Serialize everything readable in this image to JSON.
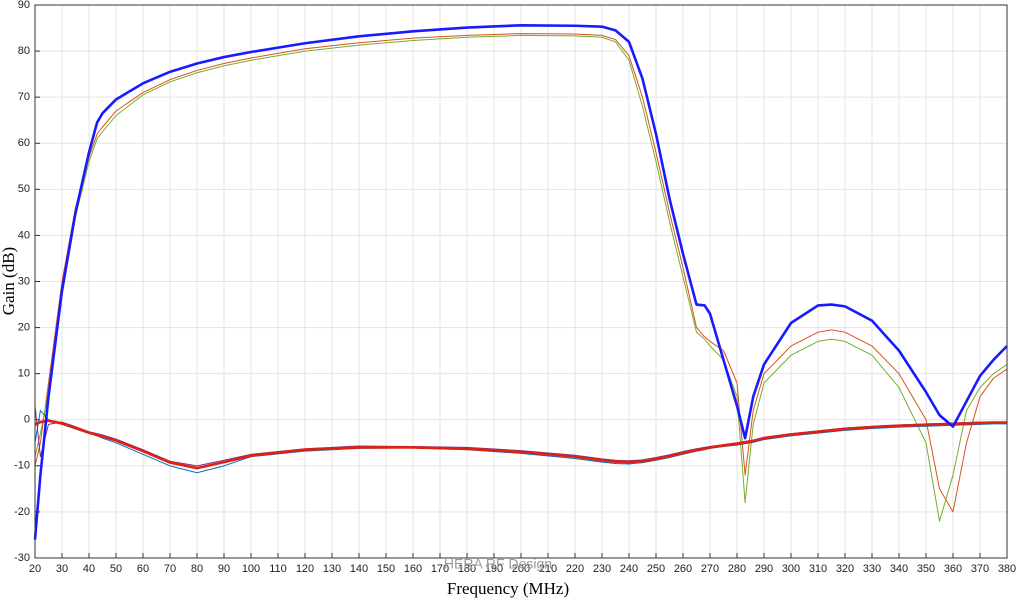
{
  "chart_data": {
    "type": "line",
    "x_label": "Frequency (MHz)",
    "y_label": "Gain (dB)",
    "annotation": "HERA RF Design",
    "x": [
      20,
      22,
      25,
      30,
      35,
      40,
      43,
      45,
      50,
      60,
      70,
      80,
      90,
      100,
      120,
      140,
      160,
      180,
      200,
      220,
      230,
      235,
      240,
      245,
      250,
      255,
      260,
      265,
      268,
      270,
      275,
      280,
      283,
      286,
      290,
      300,
      310,
      315,
      320,
      330,
      340,
      350,
      355,
      360,
      365,
      370,
      375,
      380
    ],
    "series": [
      {
        "color": "#d95319",
        "values": [
          -10,
          -5,
          8,
          30,
          46,
          57,
          62,
          63.5,
          67,
          71,
          73.8,
          75.8,
          77.3,
          78.5,
          80.5,
          81.8,
          82.8,
          83.4,
          83.8,
          83.7,
          83.4,
          82.5,
          79,
          70,
          58,
          45,
          33,
          20,
          18,
          17,
          15,
          8,
          -12,
          2,
          10,
          16,
          19,
          19.5,
          19,
          16,
          10,
          0,
          -15,
          -20,
          -5,
          5,
          9,
          11
        ]
      },
      {
        "color": "#77ac30",
        "values": [
          -8,
          -3,
          6,
          27,
          44,
          56,
          61,
          62.5,
          66,
          70.5,
          73.3,
          75.3,
          76.8,
          78,
          80,
          81.3,
          82.3,
          83,
          83.4,
          83.3,
          83,
          82,
          78,
          68,
          56,
          43,
          31,
          19,
          17.5,
          16,
          13,
          5,
          -18,
          -1,
          8,
          14,
          17,
          17.5,
          17,
          14,
          7,
          -5,
          -22,
          -12,
          2,
          7,
          10,
          12
        ]
      },
      {
        "color": "#0072bd",
        "values": [
          -5,
          2,
          0,
          -1,
          -2,
          -3,
          -3.5,
          -4,
          -5,
          -7.5,
          -10,
          -11.5,
          -10,
          -8,
          -6.8,
          -6.2,
          -6.1,
          -6.5,
          -7.3,
          -8.4,
          -9.2,
          -9.5,
          -9.6,
          -9.3,
          -8.8,
          -8.2,
          -7.5,
          -6.8,
          -6.5,
          -6.2,
          -5.8,
          -5.5,
          -5.2,
          -4.9,
          -4.3,
          -3.5,
          -2.9,
          -2.6,
          -2.3,
          -1.9,
          -1.6,
          -1.4,
          -1.3,
          -1.2,
          -1.1,
          -1,
          -0.9,
          -0.9
        ]
      },
      {
        "color": "#7e2f8e",
        "values": [
          3,
          -8,
          -1,
          -0.5,
          -1.5,
          -2.6,
          -3,
          -3.3,
          -4.2,
          -6.5,
          -9,
          -10,
          -8.8,
          -7.5,
          -6.3,
          -5.7,
          -5.8,
          -6,
          -6.7,
          -7.7,
          -8.5,
          -8.8,
          -8.9,
          -8.7,
          -8.2,
          -7.6,
          -6.9,
          -6.3,
          -6,
          -5.8,
          -5.4,
          -5,
          -4.7,
          -4.4,
          -3.8,
          -3,
          -2.4,
          -2.1,
          -1.8,
          -1.4,
          -1.1,
          -0.9,
          -0.8,
          -0.7,
          -0.6,
          -0.5,
          -0.5,
          -0.5
        ]
      },
      {
        "color": "#e02010",
        "values": [
          -1,
          -0.5,
          -0.2,
          -0.8,
          -1.8,
          -2.8,
          -3.3,
          -3.6,
          -4.5,
          -6.8,
          -9.3,
          -10.5,
          -9.2,
          -7.8,
          -6.5,
          -6,
          -6,
          -6.3,
          -7,
          -8,
          -8.8,
          -9.1,
          -9.2,
          -9,
          -8.5,
          -7.9,
          -7.2,
          -6.6,
          -6.3,
          -6,
          -5.6,
          -5.2,
          -4.9,
          -4.6,
          -4,
          -3.2,
          -2.6,
          -2.3,
          -2,
          -1.6,
          -1.3,
          -1.1,
          -1,
          -0.9,
          -0.8,
          -0.7,
          -0.6,
          -0.6
        ]
      },
      {
        "color": "#1a1aff",
        "values": [
          -26,
          -12,
          5,
          28,
          45,
          58,
          64.5,
          66.5,
          69.5,
          73,
          75.5,
          77.3,
          78.7,
          79.8,
          81.7,
          83.2,
          84.3,
          85.1,
          85.6,
          85.5,
          85.3,
          84.5,
          82,
          74,
          62,
          48,
          36,
          25,
          24.8,
          23,
          13,
          3,
          -4,
          5,
          12,
          21,
          24.8,
          25,
          24.6,
          21.5,
          15,
          6,
          1,
          -1.5,
          4,
          9.5,
          13,
          16
        ]
      }
    ],
    "xlim": [
      20,
      380
    ],
    "xticks": [
      20,
      30,
      40,
      50,
      60,
      70,
      80,
      90,
      100,
      110,
      120,
      130,
      140,
      150,
      160,
      170,
      180,
      190,
      200,
      210,
      220,
      230,
      240,
      250,
      260,
      270,
      280,
      290,
      300,
      310,
      320,
      330,
      340,
      350,
      360,
      370,
      380
    ],
    "ylim": [
      -30,
      90
    ],
    "yticks": [
      -30,
      -20,
      -10,
      0,
      10,
      20,
      30,
      40,
      50,
      60,
      70,
      80,
      90
    ],
    "grid": true
  }
}
